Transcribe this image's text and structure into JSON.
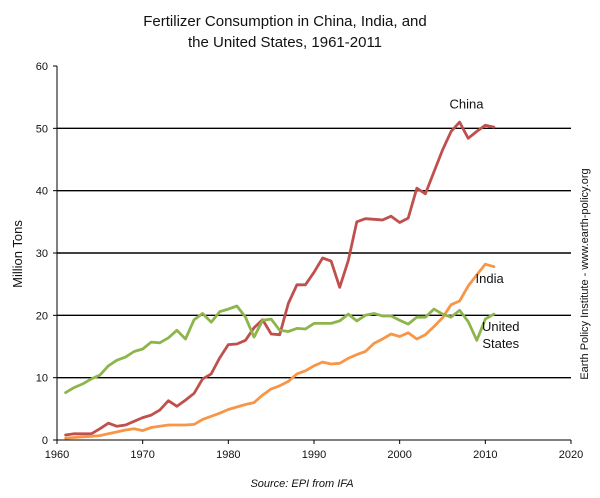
{
  "chart_data": {
    "type": "line",
    "title_lines": [
      "Fertilizer Consumption in China, India, and",
      "the United States, 1961-2011"
    ],
    "xlabel": "",
    "ylabel": "Million Tons",
    "xlim": [
      1960,
      2020
    ],
    "ylim": [
      0,
      60
    ],
    "xticks": [
      1960,
      1970,
      1980,
      1990,
      2000,
      2010,
      2020
    ],
    "yticks": [
      0,
      10,
      20,
      30,
      40,
      50,
      60
    ],
    "gridlines": [
      10,
      20,
      30,
      40,
      50
    ],
    "source": "Source: EPI from IFA",
    "side_note": "Earth Policy Institute - www.earth-policy.org",
    "x": [
      1961,
      1962,
      1963,
      1964,
      1965,
      1966,
      1967,
      1968,
      1969,
      1970,
      1971,
      1972,
      1973,
      1974,
      1975,
      1976,
      1977,
      1978,
      1979,
      1980,
      1981,
      1982,
      1983,
      1984,
      1985,
      1986,
      1987,
      1988,
      1989,
      1990,
      1991,
      1992,
      1993,
      1994,
      1995,
      1996,
      1997,
      1998,
      1999,
      2000,
      2001,
      2002,
      2003,
      2004,
      2005,
      2006,
      2007,
      2008,
      2009,
      2010,
      2011
    ],
    "series": [
      {
        "name": "China",
        "label_lines": [
          "China"
        ],
        "color": "#c0504d",
        "values": [
          0.8,
          1.0,
          1.0,
          1.0,
          1.8,
          2.7,
          2.2,
          2.4,
          3.0,
          3.6,
          4.0,
          4.8,
          6.3,
          5.4,
          6.4,
          7.5,
          9.8,
          10.6,
          13.2,
          15.3,
          15.4,
          16.0,
          18.0,
          19.3,
          17.0,
          16.9,
          21.9,
          24.9,
          24.9,
          26.9,
          29.2,
          28.7,
          24.5,
          28.8,
          35.0,
          35.5,
          35.4,
          35.3,
          35.9,
          34.9,
          35.6,
          40.4,
          39.5,
          43.0,
          46.5,
          49.5,
          51.0,
          48.4,
          49.5,
          50.5,
          50.2
        ]
      },
      {
        "name": "India",
        "label_lines": [
          "India"
        ],
        "color": "#f79646",
        "values": [
          0.3,
          0.4,
          0.5,
          0.6,
          0.7,
          1.0,
          1.3,
          1.6,
          1.8,
          1.5,
          2.0,
          2.2,
          2.4,
          2.4,
          2.4,
          2.5,
          3.3,
          3.8,
          4.3,
          4.9,
          5.3,
          5.7,
          6.0,
          7.2,
          8.2,
          8.7,
          9.4,
          10.6,
          11.1,
          11.9,
          12.5,
          12.2,
          12.3,
          13.1,
          13.7,
          14.2,
          15.5,
          16.2,
          17.0,
          16.6,
          17.2,
          16.2,
          16.9,
          18.2,
          19.6,
          21.7,
          22.3,
          24.7,
          26.5,
          28.2,
          27.8
        ]
      },
      {
        "name": "United States",
        "label_lines": [
          "United",
          "States"
        ],
        "color": "#8db54c",
        "values": [
          7.6,
          8.4,
          9.0,
          9.8,
          10.4,
          11.9,
          12.8,
          13.3,
          14.2,
          14.6,
          15.7,
          15.6,
          16.4,
          17.6,
          16.2,
          19.3,
          20.3,
          18.9,
          20.6,
          21.0,
          21.5,
          19.7,
          16.5,
          19.2,
          19.4,
          17.6,
          17.4,
          17.9,
          17.8,
          18.7,
          18.7,
          18.7,
          19.1,
          20.2,
          19.1,
          20.0,
          20.3,
          19.9,
          19.9,
          19.2,
          18.6,
          19.7,
          19.7,
          21.0,
          20.2,
          19.7,
          20.8,
          19.0,
          16.0,
          19.4,
          20.2
        ]
      }
    ]
  }
}
